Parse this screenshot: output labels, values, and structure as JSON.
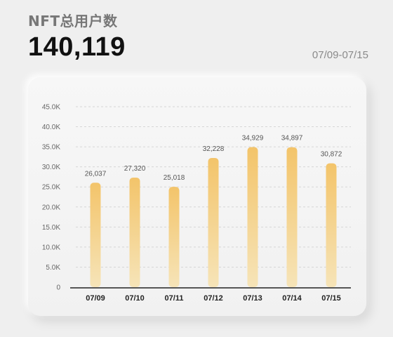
{
  "header": {
    "title": "NFT总用户数",
    "total": "140,119",
    "date_range": "07/09-07/15"
  },
  "colors": {
    "bar_top": "#f3c46a",
    "bar_bottom": "#f6e4b8",
    "grid": "#d6d6d6",
    "axis": "#222222"
  },
  "chart_data": {
    "type": "bar",
    "categories": [
      "07/09",
      "07/10",
      "07/11",
      "07/12",
      "07/13",
      "07/14",
      "07/15"
    ],
    "values": [
      26037,
      27320,
      25018,
      32228,
      34929,
      34897,
      30872
    ],
    "data_labels": [
      "26,037",
      "27,320",
      "25,018",
      "32,228",
      "34,929",
      "34,897",
      "30,872"
    ],
    "ylim": [
      0,
      45000
    ],
    "yticks": [
      0,
      5000,
      10000,
      15000,
      20000,
      25000,
      30000,
      35000,
      40000,
      45000
    ],
    "ytick_labels": [
      "0",
      "5.0K",
      "10.0K",
      "15.0K",
      "20.0K",
      "25.0K",
      "30.0K",
      "35.0K",
      "40.0K",
      "45.0K"
    ],
    "grid": true,
    "title": "",
    "xlabel": "",
    "ylabel": ""
  }
}
